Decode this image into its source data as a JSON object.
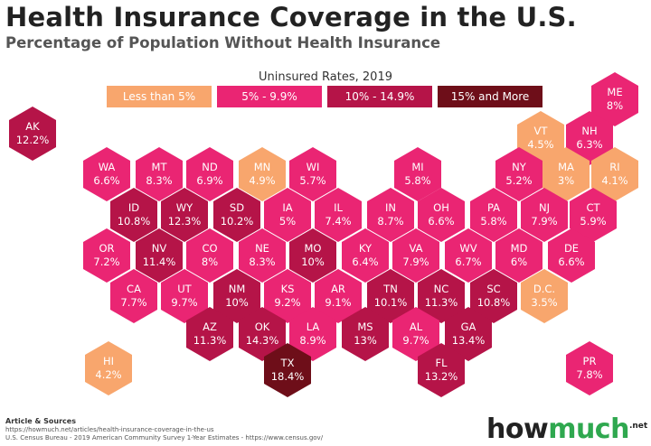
{
  "title": "Health Insurance Coverage in the U.S.",
  "subtitle": "Percentage of Population Without Health Insurance",
  "legend": {
    "title": "Uninsured Rates, 2019",
    "items": [
      "Less than 5%",
      "5% - 9.9%",
      "10% - 14.9%",
      "15% and More"
    ]
  },
  "colors": {
    "less_than_5": "#f8a66d",
    "5_to_9_9": "#ea2573",
    "10_to_14_9": "#b51448",
    "15_plus": "#6e0e19"
  },
  "states": [
    {
      "abbr": "AK",
      "rate": "12.2%"
    },
    {
      "abbr": "ME",
      "rate": "8%"
    },
    {
      "abbr": "VT",
      "rate": "4.5%"
    },
    {
      "abbr": "NH",
      "rate": "6.3%"
    },
    {
      "abbr": "WA",
      "rate": "6.6%"
    },
    {
      "abbr": "MT",
      "rate": "8.3%"
    },
    {
      "abbr": "ND",
      "rate": "6.9%"
    },
    {
      "abbr": "MN",
      "rate": "4.9%"
    },
    {
      "abbr": "WI",
      "rate": "5.7%"
    },
    {
      "abbr": "MI",
      "rate": "5.8%"
    },
    {
      "abbr": "NY",
      "rate": "5.2%"
    },
    {
      "abbr": "MA",
      "rate": "3%"
    },
    {
      "abbr": "RI",
      "rate": "4.1%"
    },
    {
      "abbr": "ID",
      "rate": "10.8%"
    },
    {
      "abbr": "WY",
      "rate": "12.3%"
    },
    {
      "abbr": "SD",
      "rate": "10.2%"
    },
    {
      "abbr": "IA",
      "rate": "5%"
    },
    {
      "abbr": "IL",
      "rate": "7.4%"
    },
    {
      "abbr": "IN",
      "rate": "8.7%"
    },
    {
      "abbr": "OH",
      "rate": "6.6%"
    },
    {
      "abbr": "PA",
      "rate": "5.8%"
    },
    {
      "abbr": "NJ",
      "rate": "7.9%"
    },
    {
      "abbr": "CT",
      "rate": "5.9%"
    },
    {
      "abbr": "OR",
      "rate": "7.2%"
    },
    {
      "abbr": "NV",
      "rate": "11.4%"
    },
    {
      "abbr": "CO",
      "rate": "8%"
    },
    {
      "abbr": "NE",
      "rate": "8.3%"
    },
    {
      "abbr": "MO",
      "rate": "10%"
    },
    {
      "abbr": "KY",
      "rate": "6.4%"
    },
    {
      "abbr": "VA",
      "rate": "7.9%"
    },
    {
      "abbr": "WV",
      "rate": "6.7%"
    },
    {
      "abbr": "MD",
      "rate": "6%"
    },
    {
      "abbr": "DE",
      "rate": "6.6%"
    },
    {
      "abbr": "CA",
      "rate": "7.7%"
    },
    {
      "abbr": "UT",
      "rate": "9.7%"
    },
    {
      "abbr": "NM",
      "rate": "10%"
    },
    {
      "abbr": "KS",
      "rate": "9.2%"
    },
    {
      "abbr": "AR",
      "rate": "9.1%"
    },
    {
      "abbr": "TN",
      "rate": "10.1%"
    },
    {
      "abbr": "NC",
      "rate": "11.3%"
    },
    {
      "abbr": "SC",
      "rate": "10.8%"
    },
    {
      "abbr": "DC",
      "label": "D.C.",
      "rate": "3.5%"
    },
    {
      "abbr": "AZ",
      "rate": "11.3%"
    },
    {
      "abbr": "OK",
      "rate": "14.3%"
    },
    {
      "abbr": "LA",
      "rate": "8.9%"
    },
    {
      "abbr": "MS",
      "rate": "13%"
    },
    {
      "abbr": "AL",
      "rate": "9.7%"
    },
    {
      "abbr": "GA",
      "rate": "13.4%"
    },
    {
      "abbr": "HI",
      "rate": "4.2%"
    },
    {
      "abbr": "TX",
      "rate": "18.4%"
    },
    {
      "abbr": "FL",
      "rate": "13.2%"
    },
    {
      "abbr": "PR",
      "rate": "7.8%"
    }
  ],
  "sources": {
    "heading": "Article & Sources",
    "lines": [
      "https://howmuch.net/articles/health-insurance-coverage-in-the-us",
      "U.S. Census Bureau - 2019 American Community Survey 1-Year Estimates - https://www.census.gov/"
    ]
  },
  "logo": {
    "part1": "how",
    "part2": "much",
    "suffix": ".net"
  }
}
